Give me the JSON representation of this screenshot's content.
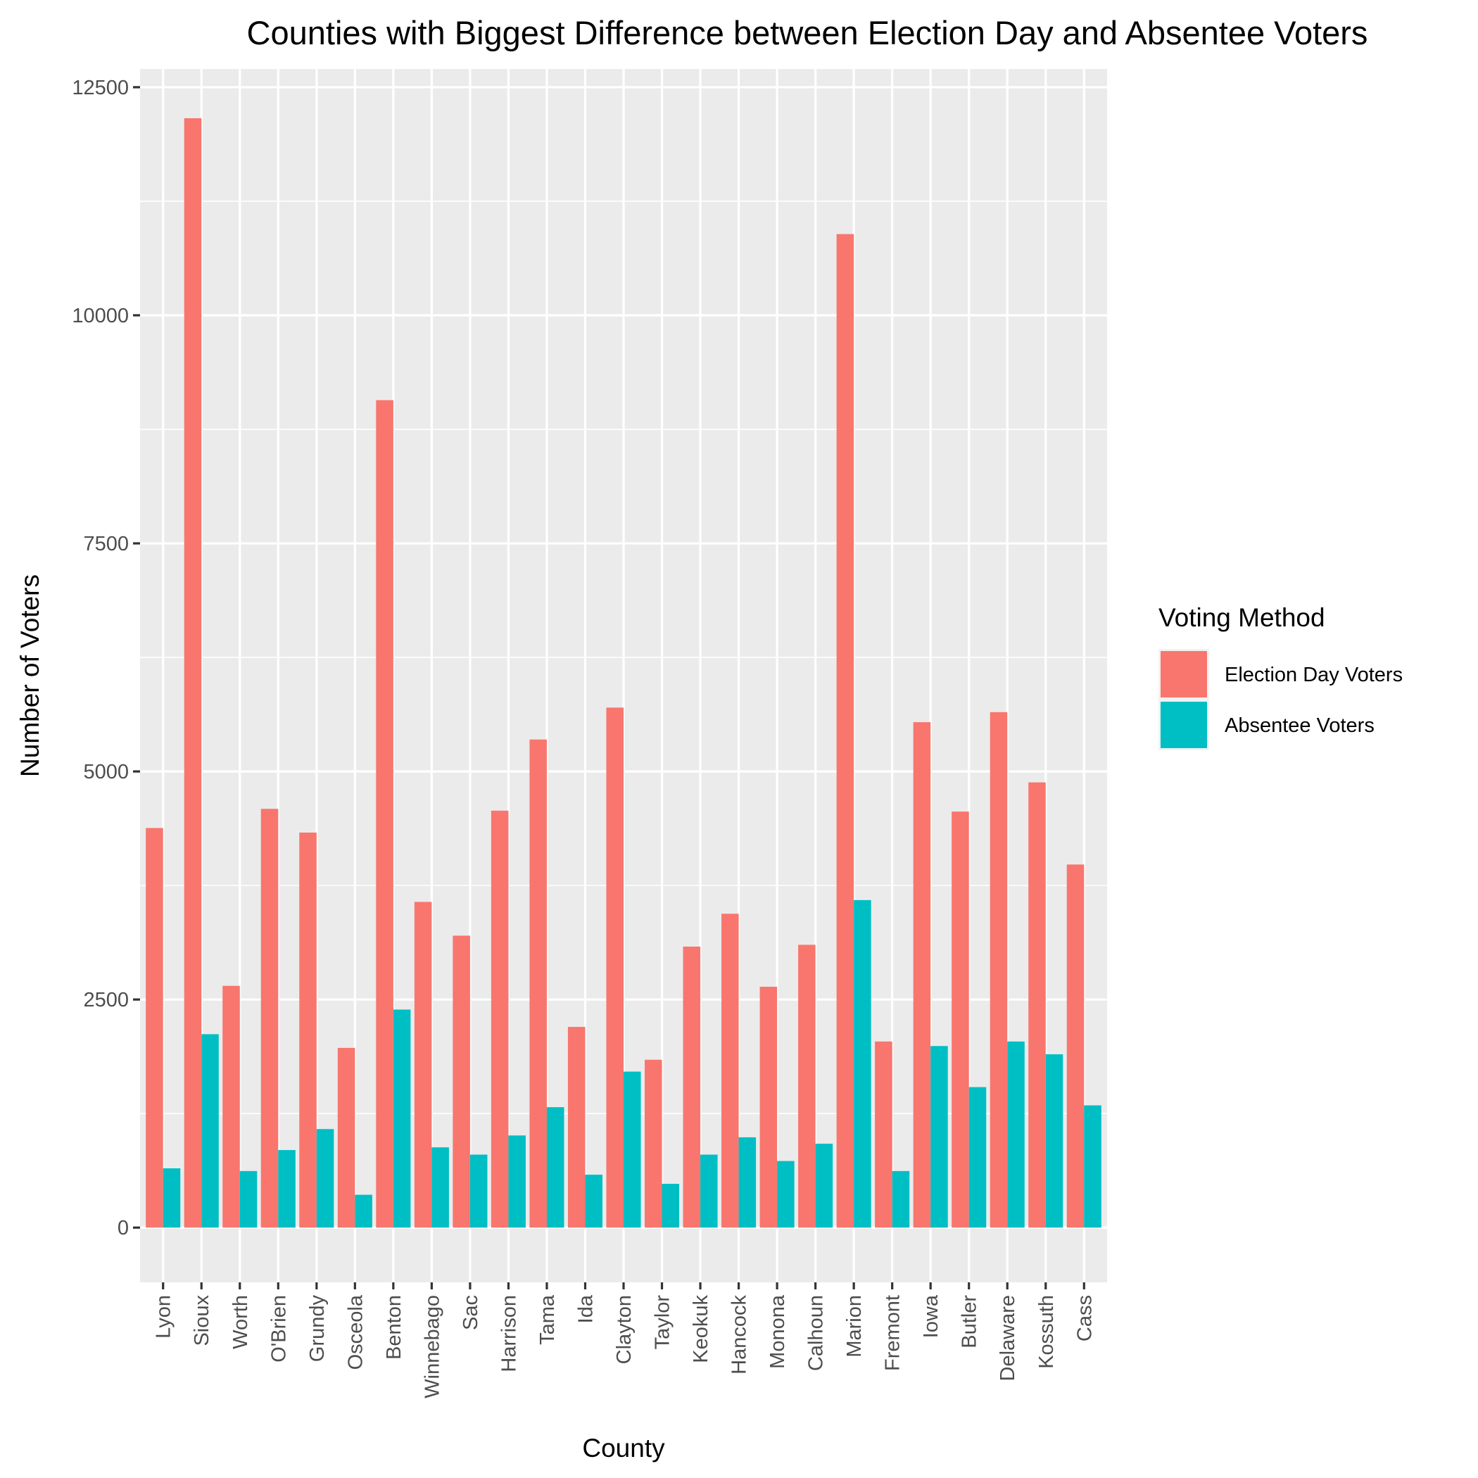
{
  "chart_data": {
    "type": "bar",
    "title": "Counties with Biggest Difference between Election Day and Absentee Voters",
    "xlabel": "County",
    "ylabel": "Number of Voters",
    "ylim": [
      -600,
      12700
    ],
    "yticks": [
      0,
      2500,
      5000,
      7500,
      10000,
      12500
    ],
    "grid": true,
    "legend_position": "right",
    "legend_title": "Voting Method",
    "categories": [
      "Lyon",
      "Sioux",
      "Worth",
      "O'Brien",
      "Grundy",
      "Osceola",
      "Benton",
      "Winnebago",
      "Sac",
      "Harrison",
      "Tama",
      "Ida",
      "Clayton",
      "Taylor",
      "Keokuk",
      "Hancock",
      "Monona",
      "Calhoun",
      "Marion",
      "Fremont",
      "Iowa",
      "Butler",
      "Delaware",
      "Kossuth",
      "Cass"
    ],
    "series": [
      {
        "name": "Election Day Voters",
        "color": "#F8766D",
        "values": [
          4380,
          12160,
          2650,
          4590,
          4330,
          1970,
          9070,
          3570,
          3200,
          4570,
          5350,
          2200,
          5700,
          1840,
          3080,
          3440,
          2640,
          3100,
          10890,
          2040,
          5540,
          4560,
          5650,
          4880,
          3980
        ]
      },
      {
        "name": "Absentee Voters",
        "color": "#00BFC4",
        "values": [
          650,
          2120,
          620,
          850,
          1080,
          360,
          2390,
          880,
          800,
          1010,
          1320,
          580,
          1710,
          480,
          800,
          990,
          730,
          920,
          3590,
          620,
          1990,
          1540,
          2040,
          1900,
          1340
        ]
      }
    ]
  }
}
